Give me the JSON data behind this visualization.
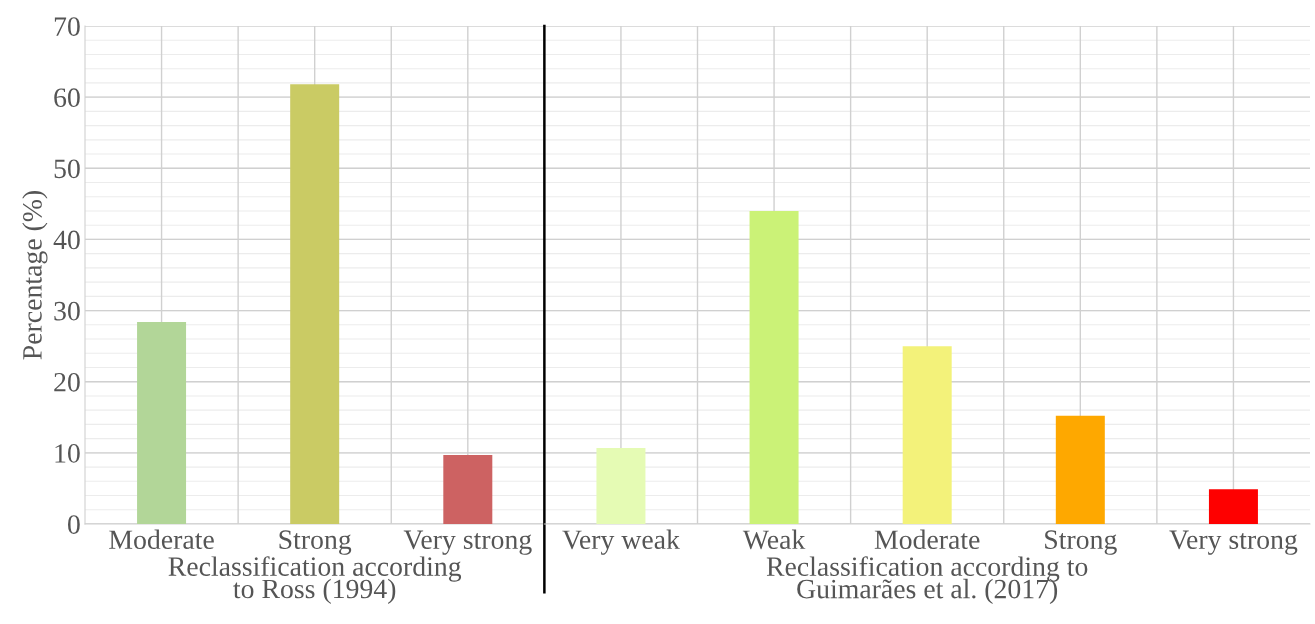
{
  "chart_data": [
    {
      "type": "bar",
      "ylabel": "Percentage (%)",
      "xlabel": "Reclassification according\nto Ross (1994)",
      "categories": [
        "Moderate",
        "Strong",
        "Very strong"
      ],
      "values": [
        28.4,
        61.8,
        9.7
      ],
      "colors": [
        "#b2d698",
        "#cacb64",
        "#cd6262"
      ],
      "ylim": [
        0,
        70
      ],
      "yticks": [
        0,
        10,
        20,
        30,
        40,
        50,
        60,
        70
      ],
      "grid": true
    },
    {
      "type": "bar",
      "xlabel": "Reclassification according to\nGuimarães et al. (2017)",
      "categories": [
        "Very weak",
        "Weak",
        "Moderate",
        "Strong",
        "Very strong"
      ],
      "values": [
        10.7,
        44.0,
        25.0,
        15.2,
        4.9
      ],
      "colors": [
        "#e5fbb4",
        "#cbf277",
        "#f3f27a",
        "#fea800",
        "#fe0000"
      ],
      "ylim": [
        0,
        70
      ],
      "yticks": [
        0,
        10,
        20,
        30,
        40,
        50,
        60,
        70
      ],
      "tick_labels": "x",
      "grid": true
    }
  ]
}
